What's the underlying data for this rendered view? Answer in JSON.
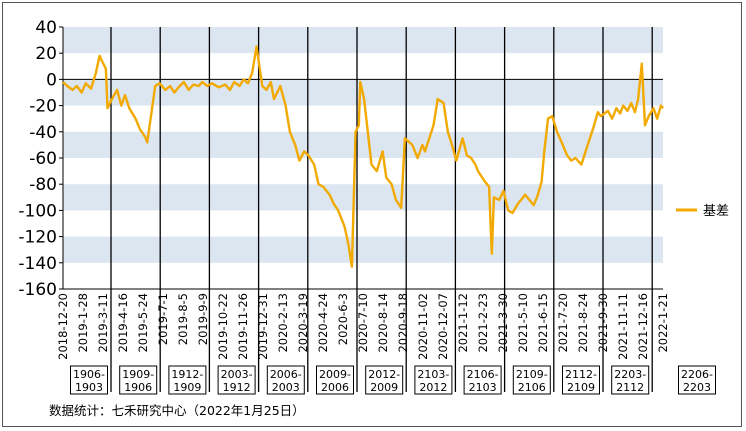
{
  "chart_data": {
    "type": "line",
    "title": "",
    "xlabel": "",
    "ylabel": "",
    "ylim": [
      -160,
      40
    ],
    "yticks": [
      40,
      20,
      0,
      -20,
      -40,
      -60,
      -80,
      -100,
      -120,
      -140,
      -160
    ],
    "grid": "horizontal alternating bands",
    "legend_position": "right",
    "series": [
      {
        "name": "基差",
        "color": "#F2A900",
        "x": [
          "2018-12-20",
          "2018-12-28",
          "2019-01-07",
          "2019-01-15",
          "2019-01-24",
          "2019-02-01",
          "2019-02-11",
          "2019-02-20",
          "2019-02-27",
          "2019-03-06",
          "2019-03-11",
          "2019-03-14",
          "2019-03-22",
          "2019-04-01",
          "2019-04-09",
          "2019-04-16",
          "2019-04-24",
          "2019-05-06",
          "2019-05-14",
          "2019-05-24",
          "2019-05-28",
          "2019-06-05",
          "2019-06-12",
          "2019-06-20",
          "2019-07-01",
          "2019-07-10",
          "2019-07-18",
          "2019-07-26",
          "2019-08-05",
          "2019-08-14",
          "2019-08-23",
          "2019-09-02",
          "2019-09-09",
          "2019-09-18",
          "2019-09-27",
          "2019-10-10",
          "2019-10-22",
          "2019-10-31",
          "2019-11-08",
          "2019-11-18",
          "2019-11-26",
          "2019-12-04",
          "2019-12-12",
          "2019-12-20",
          "2019-12-31",
          "2020-01-08",
          "2020-01-16",
          "2020-01-22",
          "2020-02-03",
          "2020-02-13",
          "2020-02-21",
          "2020-03-02",
          "2020-03-10",
          "2020-03-19",
          "2020-03-27",
          "2020-04-07",
          "2020-04-15",
          "2020-04-24",
          "2020-05-06",
          "2020-05-14",
          "2020-05-22",
          "2020-06-03",
          "2020-06-10",
          "2020-06-17",
          "2020-06-24",
          "2020-06-30",
          "2020-07-03",
          "2020-07-10",
          "2020-07-17",
          "2020-07-24",
          "2020-08-03",
          "2020-08-14",
          "2020-08-21",
          "2020-08-31",
          "2020-09-08",
          "2020-09-18",
          "2020-09-25",
          "2020-10-09",
          "2020-10-19",
          "2020-10-28",
          "2020-11-02",
          "2020-11-10",
          "2020-11-18",
          "2020-11-26",
          "2020-12-07",
          "2020-12-15",
          "2020-12-23",
          "2020-12-31",
          "2021-01-12",
          "2021-01-20",
          "2021-01-28",
          "2021-02-05",
          "2021-02-10",
          "2021-02-23",
          "2021-03-03",
          "2021-03-08",
          "2021-03-12",
          "2021-03-22",
          "2021-03-30",
          "2021-04-08",
          "2021-04-16",
          "2021-04-26",
          "2021-05-10",
          "2021-05-18",
          "2021-05-26",
          "2021-06-03",
          "2021-06-10",
          "2021-06-15",
          "2021-06-22",
          "2021-06-30",
          "2021-07-09",
          "2021-07-20",
          "2021-07-28",
          "2021-08-05",
          "2021-08-13",
          "2021-08-24",
          "2021-09-01",
          "2021-09-09",
          "2021-09-17",
          "2021-09-24",
          "2021-09-30",
          "2021-10-13",
          "2021-10-21",
          "2021-10-29",
          "2021-11-05",
          "2021-11-11",
          "2021-11-19",
          "2021-11-26",
          "2021-12-03",
          "2021-12-09",
          "2021-12-16",
          "2021-12-22",
          "2021-12-29",
          "2022-01-07",
          "2022-01-14",
          "2022-01-21",
          "2022-01-25"
        ],
        "values": [
          -2,
          -5,
          -8,
          -5,
          -10,
          -3,
          -7,
          5,
          18,
          12,
          8,
          -22,
          -15,
          -8,
          -20,
          -12,
          -22,
          -30,
          -38,
          -44,
          -48,
          -25,
          -5,
          -3,
          -8,
          -5,
          -10,
          -6,
          -2,
          -8,
          -4,
          -5,
          -2,
          -5,
          -3,
          -6,
          -4,
          -8,
          -2,
          -5,
          0,
          -3,
          5,
          25,
          -5,
          -8,
          -2,
          -15,
          -5,
          -20,
          -40,
          -50,
          -62,
          -55,
          -58,
          -65,
          -80,
          -82,
          -88,
          -95,
          -100,
          -112,
          -125,
          -143,
          -40,
          -35,
          -2,
          -15,
          -40,
          -65,
          -70,
          -55,
          -75,
          -80,
          -92,
          -98,
          -45,
          -50,
          -60,
          -50,
          -55,
          -45,
          -35,
          -15,
          -18,
          -40,
          -50,
          -62,
          -45,
          -58,
          -60,
          -65,
          -70,
          -78,
          -82,
          -133,
          -90,
          -92,
          -85,
          -100,
          -102,
          -95,
          -88,
          -92,
          -96,
          -88,
          -78,
          -55,
          -30,
          -28,
          -40,
          -50,
          -58,
          -62,
          -60,
          -65,
          -55,
          -45,
          -35,
          -25,
          -28,
          -24,
          -30,
          -22,
          -26,
          -20,
          -24,
          -18,
          -25,
          -15,
          12,
          -35,
          -28,
          -22,
          -30,
          -20,
          -22
        ]
      }
    ],
    "x_tick_labels": [
      "2018-12-20",
      "2019-1-28",
      "2019-3-11",
      "2019-4-16",
      "2019-5-24",
      "2019-7-1",
      "2019-8-5",
      "2019-9-9",
      "2019-10-22",
      "2019-11-26",
      "2019-12-31",
      "2020-2-13",
      "2020-3-19",
      "2020-4-24",
      "2020-6-3",
      "2020-7-10",
      "2020-8-14",
      "2020-9-18",
      "2020-11-02",
      "2020-12-07",
      "2021-1-12",
      "2021-2-23",
      "2021-3-30",
      "2021-5-10",
      "2021-6-15",
      "2021-7-20",
      "2021-8-24",
      "2021-9-30",
      "2021-11-11",
      "2021-12-16",
      "2022-1-21"
    ],
    "spread_boxes": [
      "1906-\n1903",
      "1909-\n1906",
      "1912-\n1909",
      "2003-\n1912",
      "2006-\n2003",
      "2009-\n2006",
      "2012-\n2009",
      "2103-\n2012",
      "2106-\n2103",
      "2109-\n2106",
      "2112-\n2109",
      "2203-\n2112",
      "2206-\n2203"
    ]
  },
  "source_note": "数据统计：七禾研究中心（2022年1月25日）"
}
